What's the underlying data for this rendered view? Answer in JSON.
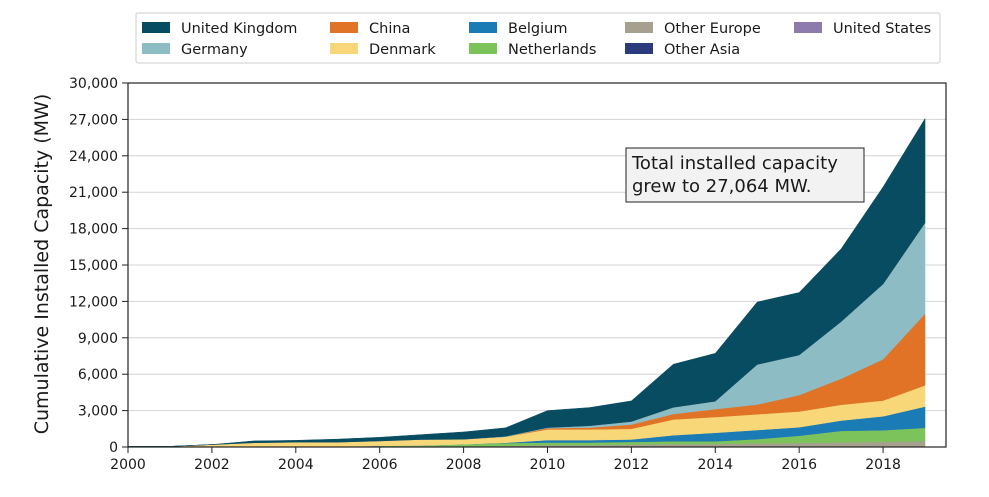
{
  "chart_data": {
    "type": "area",
    "stacked": true,
    "title": "",
    "xlabel": "",
    "ylabel": "Cumulative Installed Capacity (MW)",
    "x": [
      2000,
      2001,
      2002,
      2003,
      2004,
      2005,
      2006,
      2007,
      2008,
      2009,
      2010,
      2011,
      2012,
      2013,
      2014,
      2015,
      2016,
      2017,
      2018,
      2019
    ],
    "xlim": [
      2000,
      2019.5
    ],
    "ylim": [
      0,
      30000
    ],
    "x_ticks": [
      "2000",
      "2002",
      "2004",
      "2006",
      "2008",
      "2010",
      "2012",
      "2014",
      "2016",
      "2018"
    ],
    "y_ticks": [
      "0",
      "3,000",
      "6,000",
      "9,000",
      "12,000",
      "15,000",
      "18,000",
      "21,000",
      "24,000",
      "27,000",
      "30,000"
    ],
    "grid": "horizontal",
    "legend_position": "top",
    "annotation": {
      "lines": [
        "Total installed capacity",
        "grew to 27,064 MW."
      ]
    },
    "series": [
      {
        "name": "Other Asia",
        "color": "#2b3a7a",
        "values": [
          0,
          0,
          0,
          0,
          0,
          0,
          0,
          0,
          0,
          0,
          0,
          0,
          0,
          0,
          0,
          0,
          0,
          0,
          0,
          0
        ]
      },
      {
        "name": "United States",
        "color": "#8c7bab",
        "values": [
          0,
          0,
          0,
          0,
          0,
          0,
          0,
          0,
          0,
          0,
          0,
          0,
          0,
          0,
          0,
          0,
          30,
          30,
          30,
          30
        ]
      },
      {
        "name": "Other Europe",
        "color": "#a6a08f",
        "values": [
          0,
          0,
          0,
          0,
          0,
          0,
          0,
          0,
          0,
          100,
          150,
          150,
          200,
          250,
          250,
          300,
          300,
          350,
          400,
          450
        ]
      },
      {
        "name": "Netherlands",
        "color": "#7dc35b",
        "values": [
          0,
          0,
          0,
          0,
          0,
          0,
          100,
          120,
          220,
          220,
          220,
          220,
          220,
          220,
          220,
          350,
          600,
          950,
          950,
          1100
        ]
      },
      {
        "name": "Belgium",
        "color": "#1b7bb5",
        "values": [
          0,
          0,
          0,
          0,
          0,
          0,
          0,
          0,
          0,
          30,
          200,
          200,
          200,
          500,
          700,
          750,
          700,
          850,
          1150,
          1750
        ]
      },
      {
        "name": "Denmark",
        "color": "#f7d778",
        "values": [
          50,
          50,
          200,
          350,
          400,
          400,
          400,
          500,
          420,
          500,
          880,
          880,
          880,
          1300,
          1300,
          1300,
          1300,
          1300,
          1300,
          1750
        ]
      },
      {
        "name": "China",
        "color": "#e07325",
        "values": [
          0,
          0,
          0,
          0,
          0,
          0,
          0,
          0,
          0,
          0,
          100,
          150,
          350,
          450,
          650,
          800,
          1350,
          2150,
          3400,
          5900
        ]
      },
      {
        "name": "Germany",
        "color": "#8ebcc4",
        "values": [
          0,
          0,
          0,
          0,
          0,
          0,
          0,
          0,
          0,
          30,
          50,
          150,
          250,
          550,
          650,
          3300,
          3300,
          4700,
          6200,
          7500
        ]
      },
      {
        "name": "United Kingdom",
        "color": "#084c61",
        "values": [
          0,
          0,
          0,
          150,
          150,
          250,
          300,
          400,
          600,
          700,
          1400,
          1500,
          1700,
          3550,
          3950,
          5150,
          5150,
          6000,
          8000,
          8584
        ]
      }
    ],
    "legend_order": [
      "United Kingdom",
      "Germany",
      "China",
      "Denmark",
      "Belgium",
      "Netherlands",
      "Other Europe",
      "Other Asia",
      "United States"
    ]
  }
}
